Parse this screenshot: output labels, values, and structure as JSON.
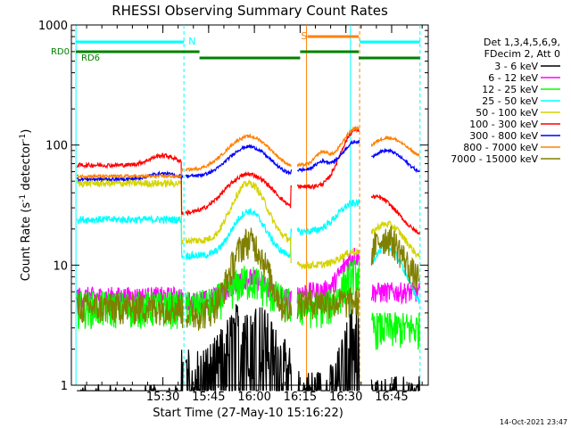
{
  "chart_data": {
    "type": "line",
    "title": "RHESSI Observing Summary Count Rates",
    "xlabel": "Start Time (27-May-10 15:16:22)",
    "ylabel_parts": [
      "Count Rate (s",
      "-1",
      " detector",
      "-1",
      ")"
    ],
    "yscale": "log",
    "ylim": [
      1,
      1000
    ],
    "xlim_minutes": [
      15.0,
      16.95
    ],
    "x_ticks": [
      "15:30",
      "15:45",
      "16:00",
      "16:15",
      "16:30",
      "16:45"
    ],
    "y_ticks": [
      "1",
      "10",
      "100",
      "1000"
    ],
    "legend_header": [
      "Det 1,3,4,5,6,9,",
      "FDecim 2, Att 0"
    ],
    "series": [
      {
        "name": "3 - 6 keV",
        "color": "#000000"
      },
      {
        "name": "6 - 12 keV",
        "color": "#ff00ff"
      },
      {
        "name": "12 - 25 keV",
        "color": "#00ff00"
      },
      {
        "name": "25 - 50 keV",
        "color": "#00ffff"
      },
      {
        "name": "50 - 100 keV",
        "color": "#d4d400"
      },
      {
        "name": "100 - 300 keV",
        "color": "#ff0000"
      },
      {
        "name": "300 - 800 keV",
        "color": "#0000ff"
      },
      {
        "name": "800 - 7000 keV",
        "color": "#ff8000"
      },
      {
        "name": "7000 - 15000 keV",
        "color": "#808000"
      }
    ],
    "annotations": {
      "N": "N",
      "S": "S",
      "RD0": "RD0",
      "RD6": "RD6"
    },
    "footer_date": "14-Oct-2021 23:47"
  }
}
